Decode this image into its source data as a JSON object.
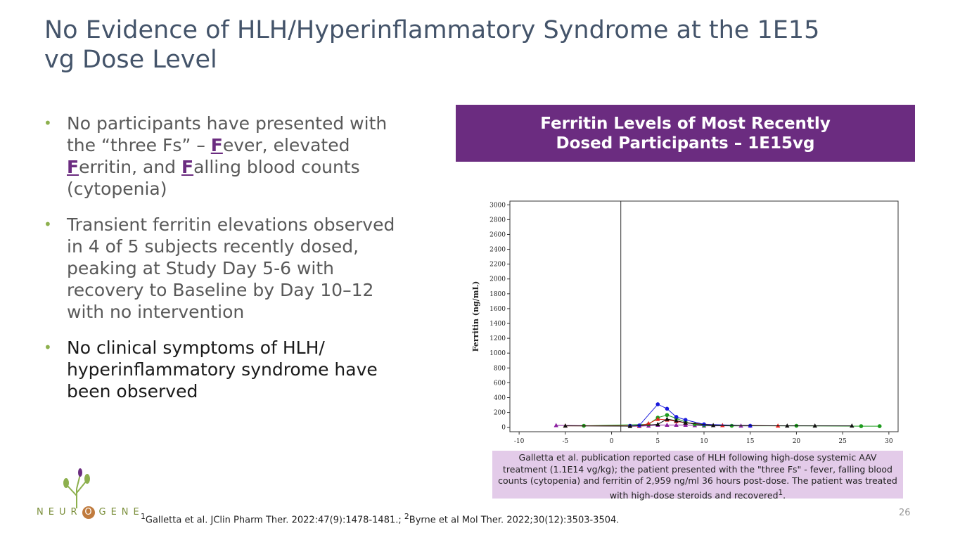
{
  "title": "No Evidence of HLH/Hyperinflammatory Syndrome at the 1E15 vg Dose Level",
  "bullets": [
    [
      "No participants have presented with the “three Fs” – ",
      "F",
      "ever, elevated ",
      "F",
      "erritin, and ",
      "F",
      "alling blood counts (cytopenia)"
    ],
    [
      "Transient ferritin elevations observed in 4 of 5 subjects recently dosed, peaking at Study Day 5-6 with recovery to Baseline by Day 10–12 with no intervention"
    ],
    [
      "No clinical symptoms of HLH/ hyperinflammatory syndrome have been observed"
    ]
  ],
  "chart_header": "Ferritin Levels of Most Recently Dosed Participants – 1E15vg",
  "chart_data": {
    "type": "line",
    "ylabel": "Ferritin (ng/mL)",
    "xlim": [
      -11,
      31
    ],
    "ylim": [
      -60,
      3050
    ],
    "xticks": [
      -10,
      -5,
      0,
      5,
      10,
      15,
      20,
      25,
      30
    ],
    "yticks": [
      0,
      200,
      400,
      600,
      800,
      1000,
      1200,
      1400,
      1600,
      1800,
      2000,
      2200,
      2400,
      2600,
      2800,
      3000
    ],
    "vline": 1,
    "series": [
      {
        "color": "#8b1fa0",
        "marker": "triangle",
        "x": [
          -6,
          2,
          3,
          4,
          5,
          6,
          7,
          8,
          9,
          10,
          14,
          15
        ],
        "values": [
          25,
          15,
          15,
          20,
          30,
          30,
          30,
          30,
          25,
          20,
          20,
          20
        ]
      },
      {
        "color": "#1e9b1e",
        "marker": "circle",
        "x": [
          -3,
          4,
          5,
          6,
          7,
          8,
          9,
          10,
          13,
          20,
          27,
          29
        ],
        "values": [
          20,
          40,
          130,
          165,
          120,
          70,
          40,
          25,
          20,
          20,
          15,
          15
        ]
      },
      {
        "color": "#e8231f",
        "marker": "triangle",
        "x": [
          -5,
          3,
          4,
          5,
          6,
          7,
          8,
          12,
          18
        ],
        "values": [
          20,
          20,
          50,
          110,
          100,
          80,
          60,
          25,
          20
        ]
      },
      {
        "color": "#1a1adb",
        "marker": "circle",
        "x": [
          2,
          3,
          5,
          6,
          7,
          8,
          10,
          15
        ],
        "values": [
          20,
          25,
          310,
          250,
          140,
          100,
          40,
          20
        ]
      },
      {
        "color": "#111111",
        "marker": "triangle",
        "x": [
          -5,
          2,
          5,
          6,
          7,
          8,
          11,
          19,
          22,
          26
        ],
        "values": [
          20,
          15,
          40,
          110,
          90,
          60,
          25,
          20,
          20,
          20
        ]
      }
    ]
  },
  "note": [
    "Galletta et al. publication reported case of HLH following high-dose systemic AAV treatment (1.1E14 vg/kg); the patient presented with the \"three Fs\" - fever, falling blood counts (cytopenia) and ferritin of 2,959 ng/ml 36 hours post-dose. The patient was treated with high-dose steroids and recovered",
    "1",
    "."
  ],
  "footnote": [
    "1",
    "Galletta et al. JClin Pharm Ther. 2022:47(9):1478-1481.; ",
    "2",
    "Byrne et al Mol Ther. 2022;30(12):3503-3504."
  ],
  "logo": [
    "NEUR",
    "O",
    "GENE"
  ],
  "page_number": "26"
}
